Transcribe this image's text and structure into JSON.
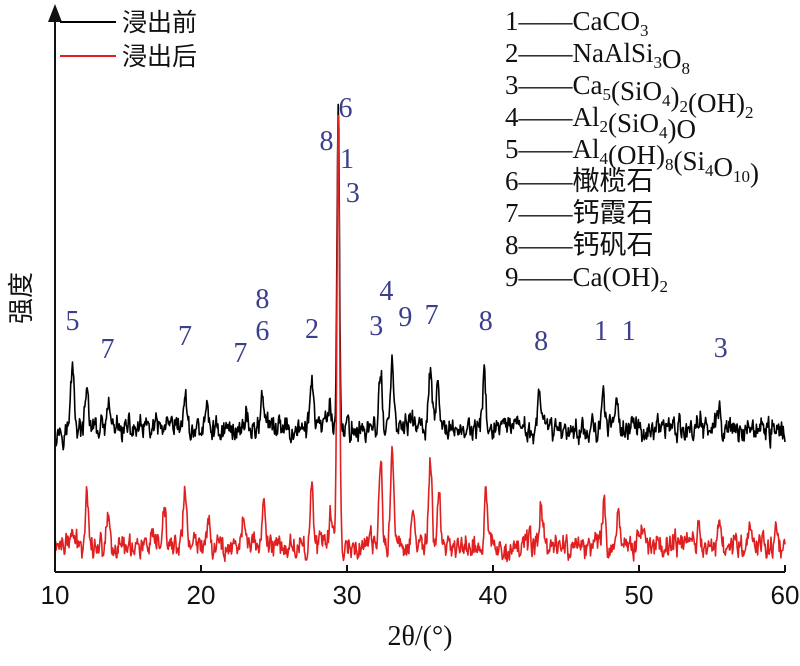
{
  "chart_data": {
    "type": "line",
    "title": "",
    "xlabel": "2θ/(°)",
    "ylabel": "强度",
    "xlim": [
      10,
      60
    ],
    "xticks": [
      10,
      20,
      30,
      40,
      50,
      60
    ],
    "y_ticks_shown": false,
    "grid": false,
    "legend_position": "top-left",
    "series": [
      {
        "name": "浸出前",
        "color": "#000000",
        "baseline": 0.43,
        "peaks": [
          [
            11.2,
            0.2
          ],
          [
            12.2,
            0.11
          ],
          [
            13.7,
            0.06
          ],
          [
            18.9,
            0.1
          ],
          [
            20.4,
            0.06
          ],
          [
            23.1,
            0.05
          ],
          [
            24.2,
            0.12
          ],
          [
            27.6,
            0.16
          ],
          [
            28.8,
            0.08
          ],
          [
            29.4,
            0.97
          ],
          [
            32.3,
            0.17
          ],
          [
            33.1,
            0.2
          ],
          [
            34.4,
            0.06
          ],
          [
            35.7,
            0.18
          ],
          [
            36.2,
            0.1
          ],
          [
            39.4,
            0.15
          ],
          [
            43.2,
            0.1
          ],
          [
            47.5,
            0.11
          ],
          [
            48.5,
            0.12
          ],
          [
            54.2,
            0.05
          ],
          [
            55.5,
            0.07
          ]
        ]
      },
      {
        "name": "浸出后",
        "color": "#e02020",
        "baseline": 0.08,
        "peaks": [
          [
            11.2,
            0.04
          ],
          [
            12.2,
            0.16
          ],
          [
            13.6,
            0.1
          ],
          [
            17.5,
            0.09
          ],
          [
            18.9,
            0.17
          ],
          [
            20.5,
            0.09
          ],
          [
            22.9,
            0.09
          ],
          [
            24.3,
            0.15
          ],
          [
            27.6,
            0.18
          ],
          [
            28.9,
            0.1
          ],
          [
            29.4,
            1.32
          ],
          [
            32.3,
            0.25
          ],
          [
            33.1,
            0.27
          ],
          [
            34.5,
            0.1
          ],
          [
            35.7,
            0.25
          ],
          [
            36.3,
            0.14
          ],
          [
            39.5,
            0.14
          ],
          [
            43.3,
            0.13
          ],
          [
            47.6,
            0.12
          ],
          [
            48.6,
            0.11
          ],
          [
            50.3,
            0.06
          ],
          [
            54.1,
            0.07
          ],
          [
            55.5,
            0.09
          ],
          [
            57.6,
            0.07
          ],
          [
            59.4,
            0.06
          ]
        ]
      }
    ],
    "peak_annotations": [
      {
        "x": 11.2,
        "text": "5"
      },
      {
        "x": 13.6,
        "text": "7"
      },
      {
        "x": 18.9,
        "text": "7"
      },
      {
        "x": 22.7,
        "text": "7"
      },
      {
        "x": 24.2,
        "text": "6"
      },
      {
        "x": 24.2,
        "text": "8"
      },
      {
        "x": 27.6,
        "text": "2"
      },
      {
        "x": 28.6,
        "text": "8"
      },
      {
        "x": 29.9,
        "text": "6"
      },
      {
        "x": 30.0,
        "text": "1"
      },
      {
        "x": 30.4,
        "text": "3"
      },
      {
        "x": 32.0,
        "text": "3"
      },
      {
        "x": 32.7,
        "text": "4"
      },
      {
        "x": 34.0,
        "text": "9"
      },
      {
        "x": 35.8,
        "text": "7"
      },
      {
        "x": 39.5,
        "text": "8"
      },
      {
        "x": 43.3,
        "text": "8"
      },
      {
        "x": 47.4,
        "text": "1"
      },
      {
        "x": 49.3,
        "text": "1"
      },
      {
        "x": 55.6,
        "text": "3"
      }
    ],
    "phase_legend": [
      {
        "num": "1",
        "parts": [
          {
            "t": "CaCO"
          },
          {
            "t": "3",
            "sub": true
          }
        ]
      },
      {
        "num": "2",
        "parts": [
          {
            "t": "NaAlSi"
          },
          {
            "t": "3",
            "sub": true
          },
          {
            "t": "O"
          },
          {
            "t": "8",
            "sub": true
          }
        ]
      },
      {
        "num": "3",
        "parts": [
          {
            "t": "Ca"
          },
          {
            "t": "5",
            "sub": true
          },
          {
            "t": "(SiO"
          },
          {
            "t": "4",
            "sub": true
          },
          {
            "t": ")"
          },
          {
            "t": "2",
            "sub": true
          },
          {
            "t": "(OH)"
          },
          {
            "t": "2",
            "sub": true
          }
        ]
      },
      {
        "num": "4",
        "parts": [
          {
            "t": "Al"
          },
          {
            "t": "2",
            "sub": true
          },
          {
            "t": "(SiO"
          },
          {
            "t": "4",
            "sub": true
          },
          {
            "t": ")O"
          }
        ]
      },
      {
        "num": "5",
        "parts": [
          {
            "t": "Al"
          },
          {
            "t": "4",
            "sub": true
          },
          {
            "t": "(OH)"
          },
          {
            "t": "8",
            "sub": true
          },
          {
            "t": "(Si"
          },
          {
            "t": "4",
            "sub": true
          },
          {
            "t": "O"
          },
          {
            "t": "10",
            "sub": true
          },
          {
            "t": ")"
          }
        ]
      },
      {
        "num": "6",
        "parts": [
          {
            "t": "橄榄石"
          }
        ]
      },
      {
        "num": "7",
        "parts": [
          {
            "t": "钙霞石"
          }
        ]
      },
      {
        "num": "8",
        "parts": [
          {
            "t": "钙矾石"
          }
        ]
      },
      {
        "num": "9",
        "parts": [
          {
            "t": "Ca(OH)"
          },
          {
            "t": "2",
            "sub": true
          }
        ]
      }
    ],
    "phase_dash": "—"
  }
}
